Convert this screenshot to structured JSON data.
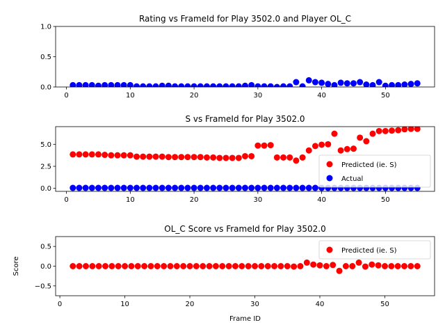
{
  "chart_data": [
    {
      "type": "scatter",
      "title": "Rating vs FrameId for Play 3502.0 and Player OL_C",
      "xlabel": "",
      "ylabel": "",
      "xlim": [
        -1.7,
        57.7
      ],
      "ylim": [
        0,
        1
      ],
      "xticks": [
        0,
        10,
        20,
        30,
        40,
        50
      ],
      "yticks": [
        0.0,
        0.5,
        1.0
      ],
      "ytick_labels": [
        "0.0",
        "0.5",
        "1.0"
      ],
      "legend": null,
      "series": [
        {
          "color": "#0000ff",
          "points": [
            [
              1,
              0.03
            ],
            [
              2,
              0.03
            ],
            [
              3,
              0.03
            ],
            [
              4,
              0.03
            ],
            [
              5,
              0.02
            ],
            [
              6,
              0.03
            ],
            [
              7,
              0.03
            ],
            [
              8,
              0.03
            ],
            [
              9,
              0.03
            ],
            [
              10,
              0.03
            ],
            [
              11,
              0.01
            ],
            [
              12,
              0.01
            ],
            [
              13,
              0.01
            ],
            [
              14,
              0.01
            ],
            [
              15,
              0.02
            ],
            [
              16,
              0.02
            ],
            [
              17,
              0.01
            ],
            [
              18,
              0.01
            ],
            [
              19,
              0.01
            ],
            [
              20,
              0.01
            ],
            [
              21,
              0.01
            ],
            [
              22,
              0.01
            ],
            [
              23,
              0.01
            ],
            [
              24,
              0.01
            ],
            [
              25,
              0.01
            ],
            [
              26,
              0.01
            ],
            [
              27,
              0.01
            ],
            [
              28,
              0.02
            ],
            [
              29,
              0.03
            ],
            [
              30,
              0.01
            ],
            [
              31,
              0.01
            ],
            [
              32,
              0.01
            ],
            [
              33,
              0.0
            ],
            [
              34,
              0.01
            ],
            [
              35,
              0.01
            ],
            [
              36,
              0.08
            ],
            [
              37,
              0.01
            ],
            [
              38,
              0.11
            ],
            [
              39,
              0.08
            ],
            [
              40,
              0.07
            ],
            [
              41,
              0.05
            ],
            [
              42,
              0.03
            ],
            [
              43,
              0.07
            ],
            [
              44,
              0.06
            ],
            [
              45,
              0.06
            ],
            [
              46,
              0.08
            ],
            [
              47,
              0.04
            ],
            [
              48,
              0.03
            ],
            [
              49,
              0.08
            ],
            [
              50,
              0.02
            ],
            [
              51,
              0.03
            ],
            [
              52,
              0.03
            ],
            [
              53,
              0.04
            ],
            [
              54,
              0.05
            ],
            [
              55,
              0.06
            ]
          ]
        }
      ]
    },
    {
      "type": "scatter",
      "title": "S vs FrameId for Play 3502.0",
      "xlabel": "",
      "ylabel": "",
      "xlim": [
        -1.7,
        57.7
      ],
      "ylim": [
        -0.34,
        7.0
      ],
      "xticks": [
        0,
        10,
        20,
        30,
        40,
        50
      ],
      "yticks": [
        0.0,
        2.5,
        5.0
      ],
      "ytick_labels": [
        "0.0",
        "2.5",
        "5.0"
      ],
      "legend": "lower-right",
      "series": [
        {
          "name": "Predicted (ie. S)",
          "color": "#ff0000",
          "points": [
            [
              1,
              3.85
            ],
            [
              2,
              3.85
            ],
            [
              3,
              3.85
            ],
            [
              4,
              3.85
            ],
            [
              5,
              3.85
            ],
            [
              6,
              3.8
            ],
            [
              7,
              3.75
            ],
            [
              8,
              3.75
            ],
            [
              9,
              3.75
            ],
            [
              10,
              3.75
            ],
            [
              11,
              3.6
            ],
            [
              12,
              3.6
            ],
            [
              13,
              3.6
            ],
            [
              14,
              3.6
            ],
            [
              15,
              3.6
            ],
            [
              16,
              3.55
            ],
            [
              17,
              3.55
            ],
            [
              18,
              3.55
            ],
            [
              19,
              3.55
            ],
            [
              20,
              3.55
            ],
            [
              21,
              3.55
            ],
            [
              22,
              3.5
            ],
            [
              23,
              3.5
            ],
            [
              24,
              3.45
            ],
            [
              25,
              3.45
            ],
            [
              26,
              3.45
            ],
            [
              27,
              3.45
            ],
            [
              28,
              3.65
            ],
            [
              29,
              3.65
            ],
            [
              30,
              4.85
            ],
            [
              31,
              4.85
            ],
            [
              32,
              4.9
            ],
            [
              33,
              3.5
            ],
            [
              34,
              3.5
            ],
            [
              35,
              3.5
            ],
            [
              36,
              3.15
            ],
            [
              37,
              3.5
            ],
            [
              38,
              4.3
            ],
            [
              39,
              4.8
            ],
            [
              40,
              4.95
            ],
            [
              41,
              5.0
            ],
            [
              42,
              6.2
            ],
            [
              43,
              4.3
            ],
            [
              44,
              4.45
            ],
            [
              45,
              4.5
            ],
            [
              46,
              5.75
            ],
            [
              47,
              5.35
            ],
            [
              48,
              6.2
            ],
            [
              49,
              6.5
            ],
            [
              50,
              6.5
            ],
            [
              51,
              6.55
            ],
            [
              52,
              6.6
            ],
            [
              53,
              6.7
            ],
            [
              54,
              6.75
            ],
            [
              55,
              6.75
            ]
          ]
        },
        {
          "name": "Actual",
          "color": "#0000ff",
          "points": [
            [
              1,
              0.05
            ],
            [
              2,
              0.05
            ],
            [
              3,
              0.05
            ],
            [
              4,
              0.05
            ],
            [
              5,
              0.05
            ],
            [
              6,
              0.05
            ],
            [
              7,
              0.05
            ],
            [
              8,
              0.05
            ],
            [
              9,
              0.05
            ],
            [
              10,
              0.05
            ],
            [
              11,
              0.05
            ],
            [
              12,
              0.05
            ],
            [
              13,
              0.05
            ],
            [
              14,
              0.05
            ],
            [
              15,
              0.05
            ],
            [
              16,
              0.05
            ],
            [
              17,
              0.05
            ],
            [
              18,
              0.05
            ],
            [
              19,
              0.05
            ],
            [
              20,
              0.05
            ],
            [
              21,
              0.05
            ],
            [
              22,
              0.05
            ],
            [
              23,
              0.05
            ],
            [
              24,
              0.05
            ],
            [
              25,
              0.05
            ],
            [
              26,
              0.05
            ],
            [
              27,
              0.05
            ],
            [
              28,
              0.05
            ],
            [
              29,
              0.05
            ],
            [
              30,
              0.05
            ],
            [
              31,
              0.05
            ],
            [
              32,
              0.05
            ],
            [
              33,
              0.05
            ],
            [
              34,
              0.05
            ],
            [
              35,
              0.05
            ],
            [
              36,
              0.05
            ],
            [
              37,
              0.05
            ],
            [
              38,
              0.05
            ],
            [
              39,
              0.05
            ],
            [
              40,
              0.05
            ],
            [
              41,
              0.05
            ],
            [
              42,
              0.05
            ],
            [
              43,
              0.05
            ],
            [
              44,
              0.05
            ],
            [
              45,
              0.05
            ],
            [
              46,
              0.05
            ],
            [
              47,
              0.05
            ],
            [
              48,
              0.05
            ],
            [
              49,
              0.05
            ],
            [
              50,
              0.05
            ],
            [
              51,
              0.05
            ],
            [
              52,
              0.05
            ],
            [
              53,
              0.05
            ],
            [
              54,
              0.05
            ],
            [
              55,
              0.05
            ]
          ]
        }
      ]
    },
    {
      "type": "scatter",
      "title": "OL_C Score vs FrameId for Play 3502.0",
      "xlabel": "Frame ID",
      "ylabel": "Score",
      "xlim": [
        -0.65,
        57.65
      ],
      "ylim": [
        -0.75,
        0.75
      ],
      "xticks": [
        0,
        10,
        20,
        30,
        40,
        50
      ],
      "yticks": [
        -0.5,
        0.0,
        0.5
      ],
      "ytick_labels": [
        "−0.5",
        "0.0",
        "0.5"
      ],
      "legend": "upper-right",
      "series": [
        {
          "name": "Predicted (ie. S)",
          "color": "#ff0000",
          "points": [
            [
              2,
              0.0
            ],
            [
              3,
              0.0
            ],
            [
              4,
              0.0
            ],
            [
              5,
              0.0
            ],
            [
              6,
              0.0
            ],
            [
              7,
              0.0
            ],
            [
              8,
              0.0
            ],
            [
              9,
              0.0
            ],
            [
              10,
              0.0
            ],
            [
              11,
              0.0
            ],
            [
              12,
              0.0
            ],
            [
              13,
              0.0
            ],
            [
              14,
              0.0
            ],
            [
              15,
              0.0
            ],
            [
              16,
              0.0
            ],
            [
              17,
              0.0
            ],
            [
              18,
              0.0
            ],
            [
              19,
              0.0
            ],
            [
              20,
              0.0
            ],
            [
              21,
              0.0
            ],
            [
              22,
              0.0
            ],
            [
              23,
              0.0
            ],
            [
              24,
              0.0
            ],
            [
              25,
              0.0
            ],
            [
              26,
              0.0
            ],
            [
              27,
              0.0
            ],
            [
              28,
              0.0
            ],
            [
              29,
              0.0
            ],
            [
              30,
              0.0
            ],
            [
              31,
              0.0
            ],
            [
              32,
              0.0
            ],
            [
              33,
              0.0
            ],
            [
              34,
              0.0
            ],
            [
              35,
              0.0
            ],
            [
              36,
              -0.01
            ],
            [
              37,
              0.0
            ],
            [
              38,
              0.09
            ],
            [
              39,
              0.04
            ],
            [
              40,
              0.02
            ],
            [
              41,
              0.0
            ],
            [
              42,
              0.03
            ],
            [
              43,
              -0.12
            ],
            [
              44,
              0.0
            ],
            [
              45,
              0.0
            ],
            [
              46,
              0.09
            ],
            [
              47,
              -0.01
            ],
            [
              48,
              0.04
            ],
            [
              49,
              0.02
            ],
            [
              50,
              0.0
            ],
            [
              51,
              0.0
            ],
            [
              52,
              0.0
            ],
            [
              53,
              0.0
            ],
            [
              54,
              0.0
            ],
            [
              55,
              0.0
            ]
          ]
        }
      ]
    }
  ]
}
